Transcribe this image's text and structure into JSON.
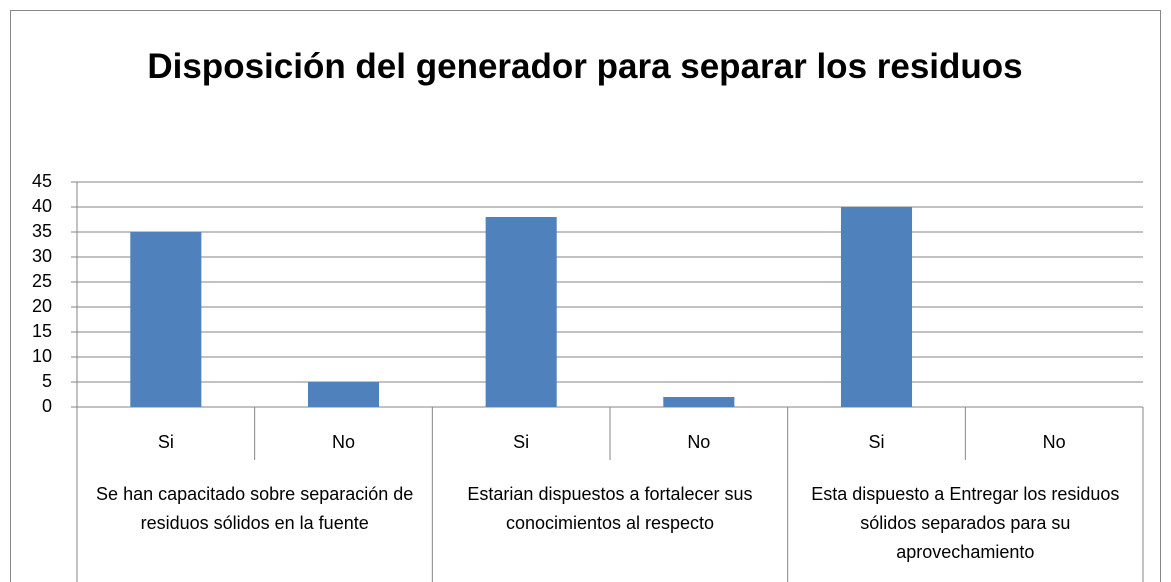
{
  "chart_data": {
    "type": "bar",
    "title": "Disposición del generador para separar los residuos",
    "groups": [
      {
        "name": "Se han capacitado sobre separación de residuos sólidos en la fuente",
        "categories": [
          "Si",
          "No"
        ]
      },
      {
        "name": "Estarian dispuestos a fortalecer sus conocimientos al respecto",
        "categories": [
          "Si",
          "No"
        ]
      },
      {
        "name": "Esta dispuesto a Entregar los residuos sólidos separados para su aprovechamiento",
        "categories": [
          "Si",
          "No"
        ]
      }
    ],
    "values": [
      35,
      5,
      38,
      2,
      40,
      0
    ],
    "color": "#4f81bd",
    "ylim": [
      0,
      45
    ],
    "yticks": [
      0,
      5,
      10,
      15,
      20,
      25,
      30,
      35,
      40,
      45
    ],
    "grid": true
  }
}
